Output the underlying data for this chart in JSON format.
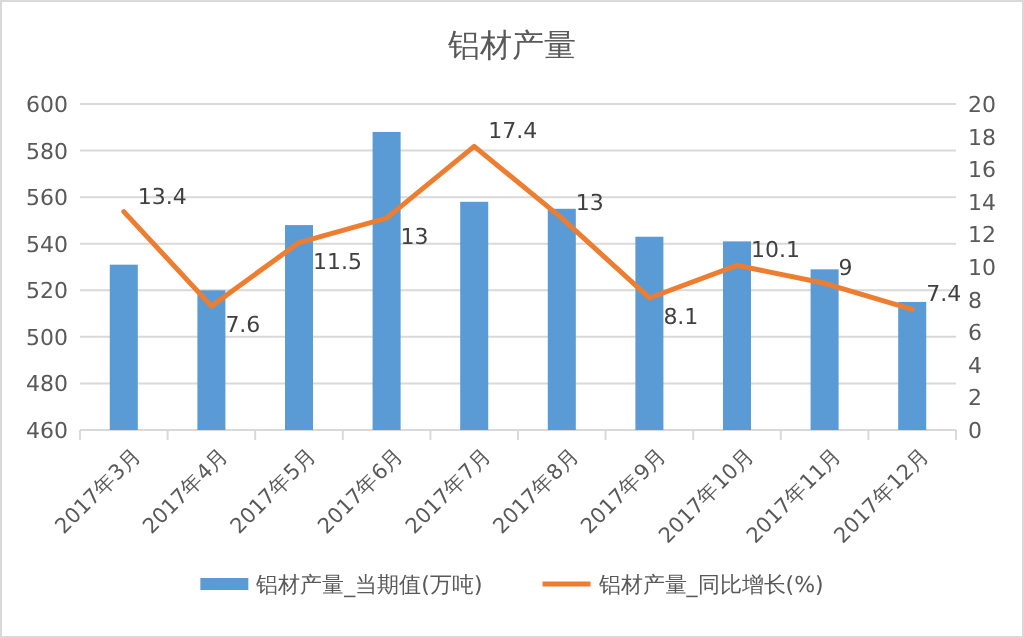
{
  "chart_data": {
    "type": "bar",
    "title": "铝材产量",
    "categories": [
      "2017年3月",
      "2017年4月",
      "2017年5月",
      "2017年6月",
      "2017年7月",
      "2017年8月",
      "2017年9月",
      "2017年10月",
      "2017年11月",
      "2017年12月"
    ],
    "series": [
      {
        "name": "铝材产量_当期值(万吨)",
        "color": "#5b9bd5",
        "values": [
          531,
          520,
          548,
          588,
          558,
          555,
          543,
          541,
          529,
          515
        ]
      },
      {
        "name": "铝材产量_同比增长(%)",
        "type": "line",
        "axis": "y2",
        "color": "#ed7d31",
        "values": [
          13.4,
          7.6,
          11.5,
          13,
          17.4,
          13,
          8.1,
          10.1,
          9,
          7.4
        ],
        "value_labels": [
          "13.4",
          "7.6",
          "11.5",
          "13",
          "17.4",
          "13",
          "8.1",
          "10.1",
          "9",
          "7.4"
        ]
      }
    ],
    "ylim": [
      460,
      600
    ],
    "yticks": [
      460,
      480,
      500,
      520,
      540,
      560,
      580,
      600
    ],
    "y2lim": [
      0,
      20
    ],
    "y2ticks": [
      0,
      2,
      4,
      6,
      8,
      10,
      12,
      14,
      16,
      18,
      20
    ],
    "grid": "y",
    "legend": "bottom"
  }
}
